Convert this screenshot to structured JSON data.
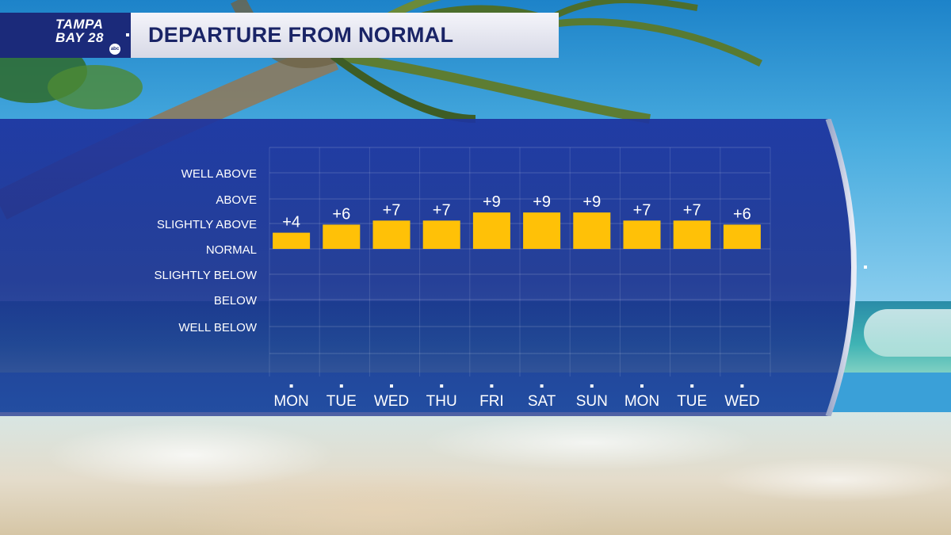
{
  "header": {
    "logo_line1": "TAMPA",
    "logo_line2": "BAY 28",
    "logo_badge": "abc",
    "title": "DEPARTURE FROM NORMAL"
  },
  "colors": {
    "bar": "#ffc107",
    "panel": "#1a2e8c",
    "title_text": "#1a2466",
    "logo_bg": "#1b2a7a"
  },
  "chart_data": {
    "type": "bar",
    "title": "DEPARTURE FROM NORMAL",
    "categories": [
      "MON",
      "TUE",
      "WED",
      "THU",
      "FRI",
      "SAT",
      "SUN",
      "MON",
      "TUE",
      "WED"
    ],
    "series": [
      {
        "values": [
          4,
          6,
          7,
          7,
          9,
          9,
          9,
          7,
          7,
          6
        ]
      }
    ],
    "value_labels": [
      "+4",
      "+6",
      "+7",
      "+7",
      "+9",
      "+9",
      "+9",
      "+7",
      "+7",
      "+6"
    ],
    "y_levels": [
      "WELL ABOVE",
      "ABOVE",
      "SLIGHTLY ABOVE",
      "NORMAL",
      "SLIGHTLY BELOW",
      "BELOW",
      "WELL BELOW"
    ],
    "ylim": [
      -20,
      20
    ],
    "grid": true,
    "legend": "none"
  }
}
